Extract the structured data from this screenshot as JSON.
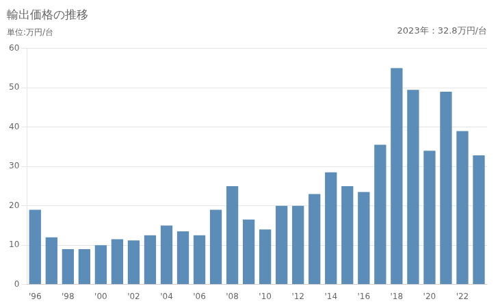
{
  "chart_data": {
    "type": "bar",
    "title": "輸出価格の推移",
    "subtitle": "単位:万円/台",
    "annotation": "2023年：32.8万円/台",
    "categories": [
      "'96",
      null,
      "'98",
      null,
      "'00",
      null,
      "'02",
      null,
      "'04",
      null,
      "'06",
      null,
      "'08",
      null,
      "'10",
      null,
      "'12",
      null,
      "'14",
      null,
      "'16",
      null,
      "'18",
      null,
      "'20",
      null,
      "'22",
      null
    ],
    "values": [
      19.0,
      12.0,
      9.0,
      9.0,
      10.0,
      11.5,
      11.2,
      12.5,
      15.0,
      13.5,
      12.5,
      19.0,
      25.0,
      16.5,
      14.0,
      20.0,
      20.0,
      23.0,
      28.5,
      25.0,
      23.5,
      35.5,
      55.0,
      49.5,
      34.0,
      49.0,
      39.0,
      32.8
    ],
    "color": "#5b8db8",
    "ylim": [
      0,
      60
    ],
    "yticks": [
      0,
      10,
      20,
      30,
      40,
      50,
      60
    ],
    "grid": true
  }
}
